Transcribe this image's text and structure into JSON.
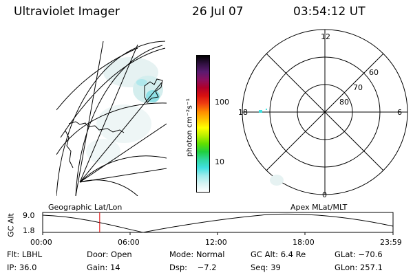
{
  "header": {
    "instrument": "Ultraviolet Imager",
    "date": "26 Jul 07",
    "time": "03:54:12 UT"
  },
  "colorbar": {
    "unit_label": "photon cm⁻²s⁻¹",
    "ticks": [
      "100",
      "10"
    ],
    "colors": [
      "#000000",
      "#301040",
      "#5a1a70",
      "#8a1060",
      "#b0002a",
      "#d81010",
      "#f04010",
      "#ff8c00",
      "#ffc400",
      "#ffff00",
      "#b8f000",
      "#60e000",
      "#20d040",
      "#30d8a0",
      "#40e0e0",
      "#a0ecec",
      "#d8f4f4",
      "#ffffff"
    ]
  },
  "polar_plot": {
    "mlt_labels": {
      "top": "12",
      "right": "6",
      "bottom": "0",
      "left": "18"
    },
    "lat_labels": [
      "60",
      "70",
      "80"
    ]
  },
  "timeline": {
    "left_label": "Geographic Lat/Lon",
    "right_label": "Apex MLat/MLT",
    "axis_title": "GC Alt",
    "y_ticks": [
      "9.0",
      "1.8"
    ],
    "x_ticks": [
      "00:00",
      "06:00",
      "12:00",
      "18:00",
      "23:59"
    ],
    "current_time_hours": 3.903,
    "marker_color": "#e00000"
  },
  "info": {
    "filter": "Flt: LBHL",
    "door": "Door: Open",
    "mode": "Mode: Normal",
    "gc_alt": "GC Alt: 6.4 Re",
    "glat": "GLat: −70.6",
    "ip": "IP: 36.0",
    "gain": "Gain: 14",
    "dsp": "Dsp:    −7.2",
    "seq": "Seq: 39",
    "glon": "GLon: 257.1"
  }
}
